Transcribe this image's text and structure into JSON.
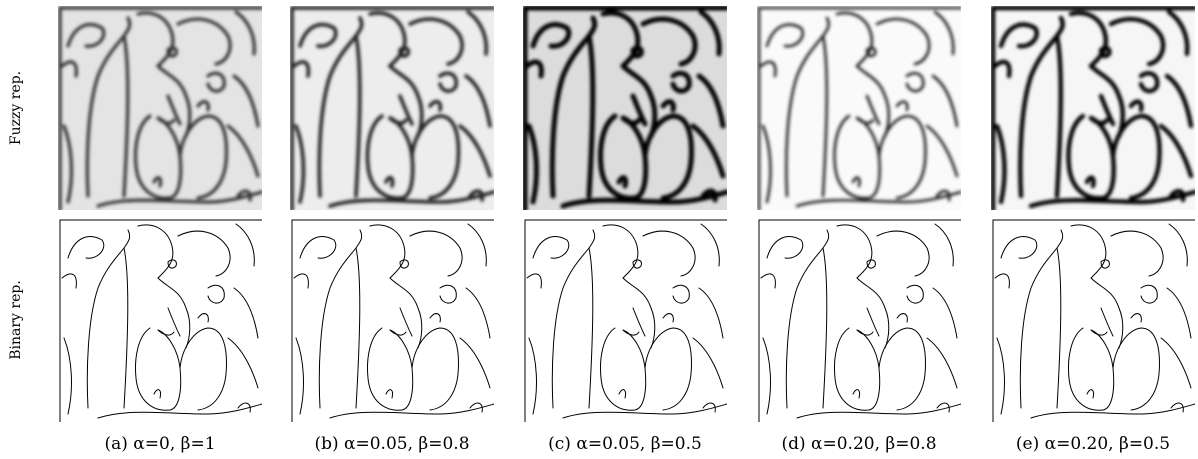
{
  "row_labels": [
    "Fuzzy rep.",
    "Binary rep."
  ],
  "captions": [
    "(a) α=0, β=1",
    "(b) α=0.05, β=0.8",
    "(c) α=0.05, β=0.5",
    "(d) α=0.20, β=0.8",
    "(e) α=0.20, β=0.5"
  ]
}
